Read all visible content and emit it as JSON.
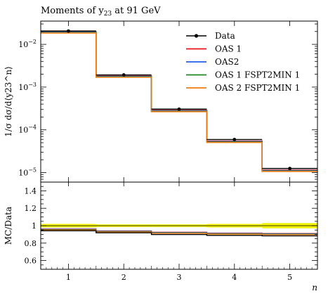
{
  "title": "Moments of y",
  "title_sub": "23",
  "title_tail": " at 91 GeV",
  "chart_data": [
    {
      "type": "line",
      "panel": "main",
      "x_edges": [
        0.5,
        1.5,
        2.5,
        3.5,
        4.5,
        5.5
      ],
      "xlim": [
        0.5,
        5.5
      ],
      "ylim": [
        6e-06,
        0.035
      ],
      "yscale": "log",
      "ylabel": "1/σ dσ/d⟨y23^n⟩",
      "yticks": [
        1e-05,
        0.0001,
        0.001,
        0.01
      ],
      "ytick_labels": [
        [
          "10",
          "−5"
        ],
        [
          "10",
          "−4"
        ],
        [
          "10",
          "−3"
        ],
        [
          "10",
          "−2"
        ]
      ],
      "legend_position": "top-right",
      "data": {
        "name": "Data",
        "x": [
          1,
          2,
          3,
          4,
          5
        ],
        "y": [
          0.0205,
          0.00193,
          0.000305,
          5.95e-05,
          1.25e-05
        ]
      },
      "series": [
        {
          "name": "OAS 1",
          "color": "#e8131c",
          "values": [
            0.0197,
            0.00182,
            0.000285,
            5.45e-05,
            1.14e-05
          ]
        },
        {
          "name": "OAS2",
          "color": "#1f5fe8",
          "values": [
            0.0197,
            0.00182,
            0.000285,
            5.45e-05,
            1.14e-05
          ]
        },
        {
          "name": "OAS 1 FSPT2MIN 1",
          "color": "#1a8a1a",
          "values": [
            0.0197,
            0.00182,
            0.000285,
            5.45e-05,
            1.14e-05
          ]
        },
        {
          "name": "OAS 2 FSPT2MIN 1",
          "color": "#f07a10",
          "values": [
            0.0197,
            0.00182,
            0.000285,
            5.45e-05,
            1.14e-05
          ]
        }
      ]
    },
    {
      "type": "line",
      "panel": "ratio",
      "x_edges": [
        0.5,
        1.5,
        2.5,
        3.5,
        4.5,
        5.5
      ],
      "xlim": [
        0.5,
        5.5
      ],
      "ylim": [
        0.5,
        1.5
      ],
      "ylabel": "MC/Data",
      "xlabel": "n",
      "yticks": [
        0.6,
        0.8,
        1,
        1.2,
        1.4
      ],
      "ytick_labels": [
        "0.6",
        "0.8",
        "1",
        "1.2",
        "1.4"
      ],
      "xticks": [
        1,
        2,
        3,
        4,
        5
      ],
      "xtick_labels": [
        "1",
        "2",
        "3",
        "4",
        "5"
      ],
      "band": {
        "color": "#f2f20a",
        "low": [
          0.98,
          0.985,
          0.985,
          0.98,
          0.97
        ],
        "high": [
          1.02,
          1.015,
          1.015,
          1.02,
          1.03
        ]
      },
      "series": [
        {
          "name": "OAS 1",
          "color": "#e8131c",
          "values": [
            0.962,
            0.94,
            0.925,
            0.915,
            0.91
          ]
        },
        {
          "name": "OAS2",
          "color": "#1f5fe8",
          "values": [
            0.962,
            0.94,
            0.925,
            0.915,
            0.91
          ]
        },
        {
          "name": "OAS 1 FSPT2MIN 1",
          "color": "#1a8a1a",
          "values": [
            0.962,
            0.94,
            0.925,
            0.915,
            0.91
          ]
        },
        {
          "name": "OAS 2 FSPT2MIN 1",
          "color": "#f07a10",
          "values": [
            0.962,
            0.94,
            0.925,
            0.915,
            0.91
          ]
        },
        {
          "name": "Data",
          "color": "#000000",
          "values": [
            0.958,
            0.935,
            0.915,
            0.905,
            0.9
          ]
        }
      ]
    }
  ]
}
